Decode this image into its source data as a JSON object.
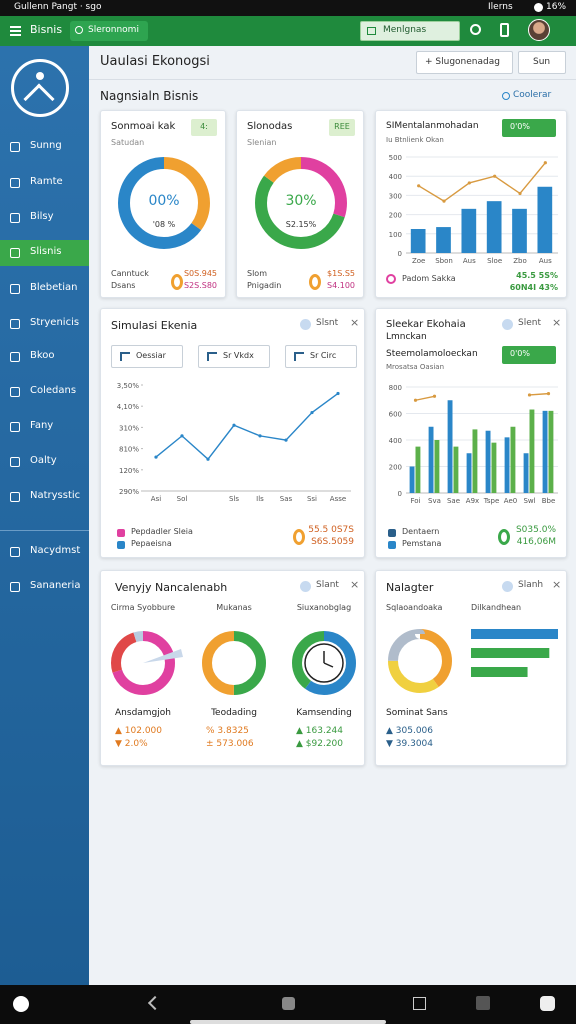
{
  "status": {
    "left": "Gullenn Pangt · sgo",
    "carrier": "Ilerns",
    "battery": "16%"
  },
  "appbar": {
    "title": "Bisnis",
    "search": "Sleronnomi",
    "menu": "Menlgnas"
  },
  "sidebar": {
    "items": [
      "Sunng",
      "Ramte",
      "Bilsy",
      "Slisnis",
      "Blebetian",
      "Stryenicis",
      "Bkoo",
      "Coledans",
      "Fany",
      "Oalty",
      "Natrysstic",
      "Nacydmst",
      "Sananeria"
    ],
    "active": 3
  },
  "header": {
    "title": "Uaulasi Ekonogsi",
    "add": "+ Slugonenadag",
    "run": "Sun",
    "section": "Nagnsialn Bisnis",
    "link": "Coolerar"
  },
  "donut_cards": [
    {
      "title": "Sonmoai kak",
      "badge": "4:",
      "subtitle": "Satudan",
      "center": "00%",
      "center_sub": "'08 %",
      "accent": "#2a86c8",
      "legend": [
        "Canntuck",
        "Dsans"
      ],
      "figures": [
        "S0S.945",
        "S2S.S80"
      ],
      "segments": [
        {
          "value": 35,
          "color": "#f0a030"
        },
        {
          "value": 65,
          "color": "#2a86c8"
        }
      ]
    },
    {
      "title": "Slonodas",
      "badge": "REE",
      "subtitle": "Slenian",
      "center": "30%",
      "center_sub": "S2.15%",
      "accent": "#3aa84a",
      "legend": [
        "Slom",
        "Pnigadin"
      ],
      "figures": [
        "$1S.S5",
        "S4.100"
      ],
      "segments": [
        {
          "value": 30,
          "color": "#e040a0"
        },
        {
          "value": 55,
          "color": "#3aa84a"
        },
        {
          "value": 15,
          "color": "#f0a030"
        }
      ]
    }
  ],
  "bar_card": {
    "title": "SIMentalanmohadan",
    "badge": "0'0%",
    "subtitle": "Iu Btnlienk Okan",
    "legend": "Padom Sakka",
    "figures": [
      "45.5 5S%",
      "60N4I 43%"
    ],
    "chart": {
      "type": "bar",
      "categories": [
        "Zoe",
        "Sbon",
        "Aus",
        "Sloe",
        "Zbo",
        "Aus"
      ],
      "ylim": [
        0,
        500
      ],
      "yticks": [
        0,
        100,
        200,
        300,
        400,
        500
      ],
      "grid": true,
      "series": [
        {
          "kind": "bar",
          "color": "#2a86c8",
          "values": [
            125,
            135,
            230,
            270,
            230,
            345
          ]
        },
        {
          "kind": "line",
          "color": "#d89a40",
          "values": [
            350,
            270,
            365,
            400,
            310,
            470
          ]
        }
      ]
    }
  },
  "line_card": {
    "title": "Simulasi Ekenia",
    "tag": "Slsnt",
    "buttons": [
      "Oessiar",
      "Sr Vkdx",
      "Sr Circ"
    ],
    "legend": [
      "Pepdadler Sleia",
      "Pepaeisna"
    ],
    "figures": [
      "55.5 0S7S",
      "S6S.5059"
    ],
    "chart": {
      "type": "line",
      "categories": [
        "Asi",
        "Sol",
        null,
        "Sls",
        "Ils",
        "Sas",
        "Ssi",
        "Asse"
      ],
      "ylim": [
        1,
        6
      ],
      "yticks": [
        {
          "value": 1,
          "label": "290%"
        },
        {
          "value": 2,
          "label": "120%"
        },
        {
          "value": 3,
          "label": "810%"
        },
        {
          "value": 4,
          "label": "310%"
        },
        {
          "value": 5,
          "label": "4,10%"
        },
        {
          "value": 6,
          "label": "3,50%"
        }
      ],
      "grid": false,
      "series": [
        {
          "kind": "line",
          "color": "#2a86c8",
          "values": [
            2.6,
            3.6,
            2.5,
            4.1,
            3.6,
            3.4,
            4.7,
            5.6
          ]
        }
      ]
    }
  },
  "group_card": {
    "title": "Sleekar Ekohaia",
    "title2": "Lmnckan",
    "tag": "Slent",
    "subtitle": "Steemolamoloeckan",
    "badge": "0'0%",
    "subtitle2": "Mrosatsa Oasian",
    "legend": [
      "Dentaern",
      "Pemstana"
    ],
    "figures": [
      "S035.0%",
      "416,06M"
    ],
    "chart": {
      "type": "bar",
      "categories": [
        "Foi",
        "Sva",
        "Sae",
        "A9x",
        "Tspe",
        "Ae0",
        "Swl",
        "Bbe"
      ],
      "ylim": [
        0,
        800
      ],
      "yticks": [
        0,
        200,
        400,
        600,
        800
      ],
      "grid": true,
      "series": [
        {
          "kind": "bar",
          "color": "#2a86c8",
          "values": [
            200,
            500,
            700,
            300,
            470,
            420,
            300,
            620
          ]
        },
        {
          "kind": "bar",
          "color": "#5cb04a",
          "values": [
            350,
            400,
            350,
            480,
            380,
            500,
            630,
            620
          ]
        },
        {
          "kind": "line",
          "color": "#d89a40",
          "values": [
            700,
            730,
            null,
            null,
            null,
            null,
            740,
            750
          ]
        }
      ]
    }
  },
  "trio_card": {
    "title": "Venyjy Nancalenabh",
    "tag": "Slant",
    "columns": [
      {
        "header": "Cirma Syobbure",
        "label": "Ansdamgjoh",
        "figures": [
          "▲ 102.000",
          "▼ 2.0%"
        ],
        "color": "#e07a20",
        "segments": [
          {
            "value": 70,
            "color": "#e040a0"
          },
          {
            "value": 25,
            "color": "#e04848"
          },
          {
            "value": 5,
            "color": "#b8cce0"
          }
        ]
      },
      {
        "header": "Mukanas",
        "label": "Teodading",
        "figures": [
          "% 3.8325",
          "± 573.006"
        ],
        "color": "#e07a20",
        "segments": [
          {
            "value": 50,
            "color": "#3aa84a"
          },
          {
            "value": 50,
            "color": "#f0a030"
          }
        ]
      },
      {
        "header": "Siuxanobglag",
        "label": "Kamsending",
        "figures": [
          "▲ 163.244",
          "▲ $92.200"
        ],
        "color": "#3a9a40",
        "segments": [
          {
            "value": 60,
            "color": "#2a86c8"
          },
          {
            "value": 40,
            "color": "#3aa84a"
          }
        ]
      }
    ]
  },
  "mix_card": {
    "title": "Nalagter",
    "tag": "Slanh",
    "headers": [
      "Sqlaoandoaka",
      "Dilkandhean"
    ],
    "label": "Sominat Sans",
    "figures": [
      "▲ 305.006",
      "▼ 39.3004"
    ],
    "segments": [
      {
        "value": 40,
        "color": "#f0a030"
      },
      {
        "value": 35,
        "color": "#f0d040"
      },
      {
        "value": 25,
        "color": "#b0bccb"
      }
    ],
    "hbars": {
      "xlim": [
        0,
        100
      ],
      "values": [
        100,
        90,
        65
      ],
      "colors": [
        "#2a86c8",
        "#3aa84a",
        "#3aa84a"
      ]
    }
  }
}
